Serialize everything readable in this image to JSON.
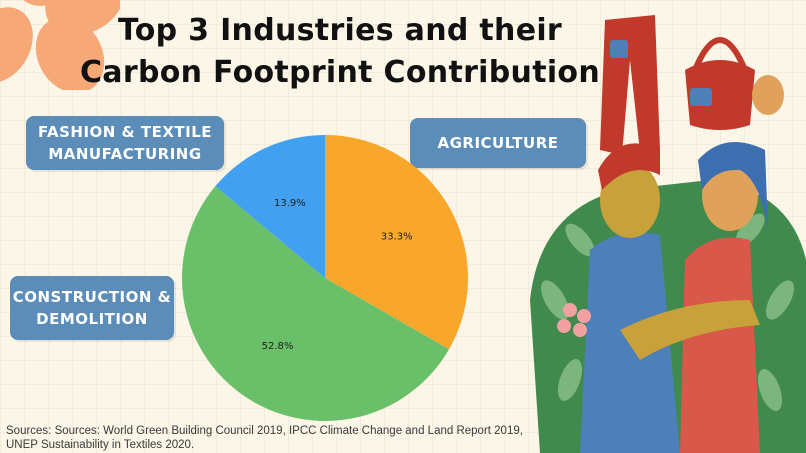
{
  "title_line1": "Top 3 Industries and their",
  "title_line2": "Carbon Footprint Contribution",
  "labels": {
    "fashion": "FASHION & TEXTILE MANUFACTURING",
    "agriculture": "AGRICULTURE",
    "construction": "CONSTRUCTION & DEMOLITION"
  },
  "sources": "Sources: Sources: World Green Building Council 2019, IPCC Climate Change and Land Report 2019, UNEP Sustainability in Textiles 2020.",
  "colors": {
    "agriculture": "#f9a72b",
    "construction": "#6abf69",
    "fashion": "#42a0f0",
    "label_bg": "#5b8db8"
  },
  "chart_data": {
    "type": "pie",
    "title": "Top 3 Industries and their Carbon Footprint Contribution",
    "slices": [
      {
        "name": "AGRICULTURE",
        "value": 33.3,
        "label": "33.3%",
        "color": "#f9a72b"
      },
      {
        "name": "CONSTRUCTION & DEMOLITION",
        "value": 52.8,
        "label": "52.8%",
        "color": "#6abf69"
      },
      {
        "name": "FASHION & TEXTILE MANUFACTURING",
        "value": 13.9,
        "label": "13.9%",
        "color": "#42a0f0"
      }
    ],
    "start": "top",
    "direction": "clockwise"
  }
}
